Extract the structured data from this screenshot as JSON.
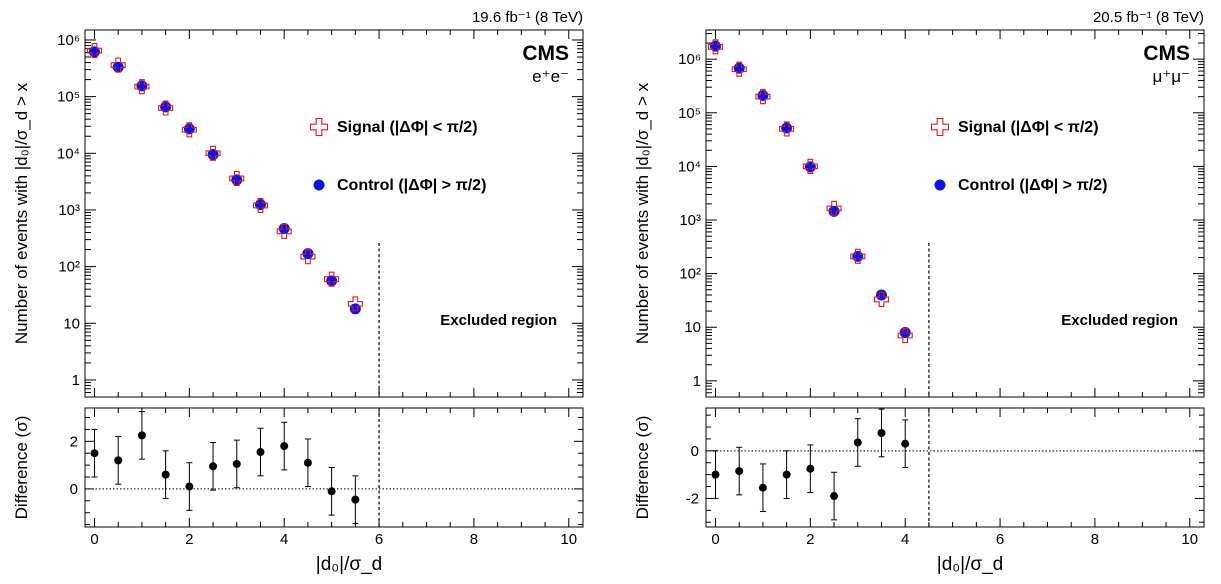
{
  "chart_data": [
    {
      "type": "scatter",
      "lumi": "19.6 fb⁻¹ (8 TeV)",
      "experiment": "CMS",
      "channel": "e⁺e⁻",
      "ylabel": "Number of events with |d₀|/σ_d > x",
      "xlabel": "|d₀|/σ_d",
      "ratio_ylabel": "Difference (σ)",
      "xlim": [
        -0.2,
        10.3
      ],
      "ylim": [
        0.5,
        1500000
      ],
      "yscale": "log",
      "ratio_ylim": [
        -1.6,
        3.4
      ],
      "y_ticks": [
        {
          "v": 1,
          "label": "1"
        },
        {
          "v": 10,
          "label": "10"
        },
        {
          "v": 100,
          "label": "10²"
        },
        {
          "v": 1000,
          "label": "10³"
        },
        {
          "v": 10000,
          "label": "10⁴"
        },
        {
          "v": 100000,
          "label": "10⁵"
        },
        {
          "v": 1000000,
          "label": "10⁶"
        }
      ],
      "ratio_y_ticks": [
        0,
        2
      ],
      "x_ticks": [
        0,
        2,
        4,
        6,
        8,
        10
      ],
      "cut": 6,
      "excluded_label": "Excluded region",
      "legend": [
        "Signal (|ΔΦ| < π/2)",
        "Control (|ΔΦ| > π/2)"
      ],
      "x": [
        0,
        0.5,
        1,
        1.5,
        2,
        2.5,
        3,
        3.5,
        4,
        4.5,
        5,
        5.5
      ],
      "series": [
        {
          "name": "Signal (|ΔΦ| < π/2)",
          "values": [
            650000,
            360000,
            150000,
            63000,
            26000,
            10000,
            3600,
            1200,
            420,
            150,
            60,
            22
          ]
        },
        {
          "name": "Control (|ΔΦ| > π/2)",
          "values": [
            620000,
            330000,
            155000,
            66000,
            27000,
            9500,
            3400,
            1250,
            470,
            170,
            56,
            18
          ]
        }
      ],
      "difference": [
        1.5,
        1.2,
        2.25,
        0.6,
        0.1,
        0.95,
        1.05,
        1.55,
        1.8,
        1.1,
        -0.1,
        -0.45
      ],
      "difference_err": [
        1.0,
        1.0,
        1.0,
        1.0,
        1.0,
        1.0,
        1.0,
        1.0,
        1.0,
        1.0,
        1.0,
        1.0
      ]
    },
    {
      "type": "scatter",
      "lumi": "20.5 fb⁻¹ (8 TeV)",
      "experiment": "CMS",
      "channel": "μ⁺μ⁻",
      "ylabel": "Number of events with |d₀|/σ_d > x",
      "xlabel": "|d₀|/σ_d",
      "ratio_ylabel": "Difference (σ)",
      "xlim": [
        -0.2,
        10.3
      ],
      "ylim": [
        0.5,
        3500000
      ],
      "yscale": "log",
      "ratio_ylim": [
        -3.2,
        1.8
      ],
      "y_ticks": [
        {
          "v": 1,
          "label": "1"
        },
        {
          "v": 10,
          "label": "10"
        },
        {
          "v": 100,
          "label": "10²"
        },
        {
          "v": 1000,
          "label": "10³"
        },
        {
          "v": 10000,
          "label": "10⁴"
        },
        {
          "v": 100000,
          "label": "10⁵"
        },
        {
          "v": 1000000,
          "label": "10⁶"
        }
      ],
      "ratio_y_ticks": [
        -2,
        0
      ],
      "x_ticks": [
        0,
        2,
        4,
        6,
        8,
        10
      ],
      "cut": 4.5,
      "excluded_label": "Excluded region",
      "legend": [
        "Signal (|ΔΦ| < π/2)",
        "Control (|ΔΦ| > π/2)"
      ],
      "x": [
        0,
        0.5,
        1,
        1.5,
        2,
        2.5,
        3,
        3.5,
        4
      ],
      "series": [
        {
          "name": "Signal (|ΔΦ| < π/2)",
          "values": [
            1700000,
            650000,
            200000,
            50000,
            10000,
            1650,
            210,
            33,
            7
          ]
        },
        {
          "name": "Control (|ΔΦ| > π/2)",
          "values": [
            1750000,
            680000,
            210000,
            52000,
            9800,
            1450,
            210,
            40,
            8
          ]
        }
      ],
      "difference": [
        -1.0,
        -0.85,
        -1.55,
        -1.0,
        -0.75,
        -1.9,
        0.35,
        0.75,
        0.3
      ],
      "difference_err": [
        1.0,
        1.0,
        1.0,
        1.0,
        1.0,
        1.0,
        1.0,
        1.0,
        1.0
      ]
    }
  ]
}
